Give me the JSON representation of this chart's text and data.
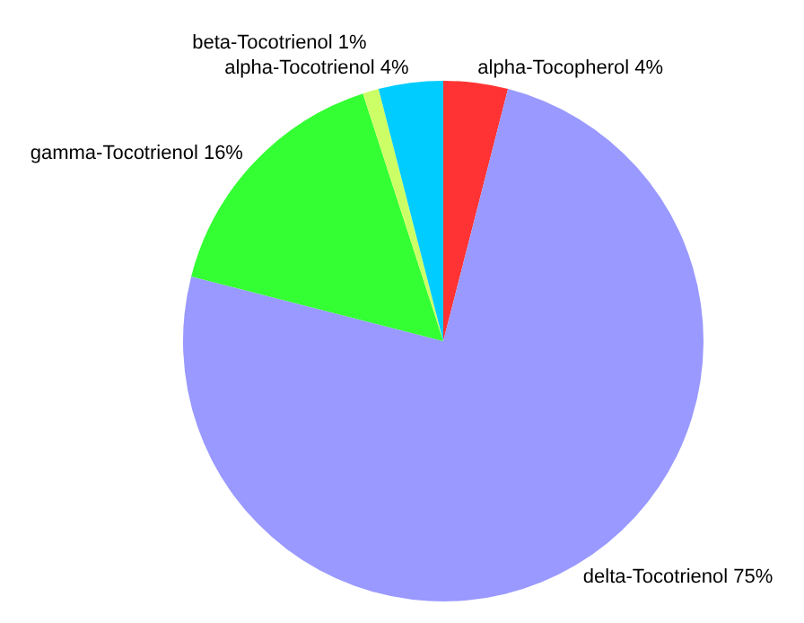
{
  "chart_data": {
    "type": "pie",
    "categories": [
      "alpha-Tocopherol",
      "delta-Tocotrienol",
      "gamma-Tocotrienol",
      "beta-Tocotrienol",
      "alpha-Tocotrienol"
    ],
    "values": [
      4,
      75,
      16,
      1,
      4
    ],
    "value_labels": [
      "4%",
      "75%",
      "16%",
      "1%",
      "4%"
    ],
    "colors": [
      "#ff3333",
      "#9999ff",
      "#33ff33",
      "#ccff66",
      "#00ccff"
    ],
    "legend": false
  }
}
